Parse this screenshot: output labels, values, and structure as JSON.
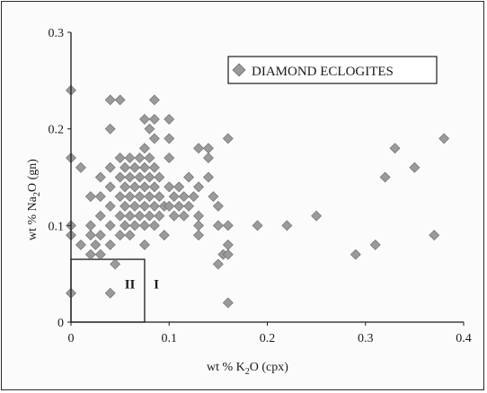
{
  "chart_data": {
    "type": "scatter",
    "xlabel": "wt % K2O (cpx)",
    "ylabel": "wt % Na2O (gn)",
    "xlim": [
      0,
      0.4
    ],
    "ylim": [
      0,
      0.3
    ],
    "x_ticks": [
      "0",
      "0.1",
      "0.2",
      "0.3",
      "0.4"
    ],
    "y_ticks": [
      "0",
      "0.1",
      "0.2",
      "0.3"
    ],
    "grid": false,
    "legend_position": "top-right",
    "series": [
      {
        "name": "DIAMOND ECLOGITES",
        "marker": "diamond",
        "color": "#9a9a9a",
        "points": [
          [
            0,
            0.24
          ],
          [
            0,
            0.17
          ],
          [
            0,
            0.1
          ],
          [
            0,
            0.09
          ],
          [
            0,
            0.03
          ],
          [
            0.01,
            0.16
          ],
          [
            0.01,
            0.08
          ],
          [
            0.02,
            0.13
          ],
          [
            0.02,
            0.1
          ],
          [
            0.02,
            0.09
          ],
          [
            0.02,
            0.07
          ],
          [
            0.025,
            0.08
          ],
          [
            0.03,
            0.15
          ],
          [
            0.03,
            0.13
          ],
          [
            0.03,
            0.11
          ],
          [
            0.03,
            0.09
          ],
          [
            0.03,
            0.07
          ],
          [
            0.04,
            0.23
          ],
          [
            0.04,
            0.2
          ],
          [
            0.04,
            0.16
          ],
          [
            0.04,
            0.14
          ],
          [
            0.04,
            0.12
          ],
          [
            0.04,
            0.1
          ],
          [
            0.04,
            0.08
          ],
          [
            0.04,
            0.03
          ],
          [
            0.045,
            0.06
          ],
          [
            0.05,
            0.23
          ],
          [
            0.05,
            0.17
          ],
          [
            0.05,
            0.15
          ],
          [
            0.05,
            0.13
          ],
          [
            0.05,
            0.11
          ],
          [
            0.05,
            0.09
          ],
          [
            0.055,
            0.16
          ],
          [
            0.055,
            0.14
          ],
          [
            0.055,
            0.12
          ],
          [
            0.055,
            0.1
          ],
          [
            0.06,
            0.17
          ],
          [
            0.06,
            0.15
          ],
          [
            0.06,
            0.13
          ],
          [
            0.06,
            0.11
          ],
          [
            0.06,
            0.09
          ],
          [
            0.065,
            0.16
          ],
          [
            0.065,
            0.14
          ],
          [
            0.065,
            0.12
          ],
          [
            0.065,
            0.1
          ],
          [
            0.07,
            0.17
          ],
          [
            0.07,
            0.15
          ],
          [
            0.07,
            0.13
          ],
          [
            0.07,
            0.11
          ],
          [
            0.075,
            0.21
          ],
          [
            0.075,
            0.18
          ],
          [
            0.075,
            0.16
          ],
          [
            0.075,
            0.14
          ],
          [
            0.075,
            0.12
          ],
          [
            0.075,
            0.1
          ],
          [
            0.075,
            0.08
          ],
          [
            0.08,
            0.2
          ],
          [
            0.08,
            0.17
          ],
          [
            0.08,
            0.15
          ],
          [
            0.08,
            0.13
          ],
          [
            0.08,
            0.11
          ],
          [
            0.085,
            0.23
          ],
          [
            0.085,
            0.21
          ],
          [
            0.085,
            0.19
          ],
          [
            0.085,
            0.16
          ],
          [
            0.085,
            0.14
          ],
          [
            0.085,
            0.12
          ],
          [
            0.085,
            0.1
          ],
          [
            0.09,
            0.15
          ],
          [
            0.09,
            0.13
          ],
          [
            0.09,
            0.11
          ],
          [
            0.095,
            0.12
          ],
          [
            0.095,
            0.09
          ],
          [
            0.1,
            0.21
          ],
          [
            0.1,
            0.19
          ],
          [
            0.1,
            0.17
          ],
          [
            0.1,
            0.14
          ],
          [
            0.1,
            0.12
          ],
          [
            0.105,
            0.13
          ],
          [
            0.105,
            0.11
          ],
          [
            0.11,
            0.14
          ],
          [
            0.11,
            0.12
          ],
          [
            0.115,
            0.13
          ],
          [
            0.115,
            0.11
          ],
          [
            0.12,
            0.15
          ],
          [
            0.12,
            0.12
          ],
          [
            0.125,
            0.13
          ],
          [
            0.13,
            0.18
          ],
          [
            0.13,
            0.14
          ],
          [
            0.13,
            0.11
          ],
          [
            0.13,
            0.1
          ],
          [
            0.13,
            0.09
          ],
          [
            0.14,
            0.18
          ],
          [
            0.14,
            0.17
          ],
          [
            0.14,
            0.15
          ],
          [
            0.145,
            0.13
          ],
          [
            0.15,
            0.12
          ],
          [
            0.15,
            0.1
          ],
          [
            0.15,
            0.06
          ],
          [
            0.155,
            0.07
          ],
          [
            0.16,
            0.19
          ],
          [
            0.16,
            0.1
          ],
          [
            0.16,
            0.08
          ],
          [
            0.16,
            0.07
          ],
          [
            0.16,
            0.02
          ],
          [
            0.19,
            0.1
          ],
          [
            0.22,
            0.1
          ],
          [
            0.25,
            0.11
          ],
          [
            0.29,
            0.07
          ],
          [
            0.31,
            0.08
          ],
          [
            0.32,
            0.15
          ],
          [
            0.33,
            0.18
          ],
          [
            0.35,
            0.16
          ],
          [
            0.37,
            0.09
          ],
          [
            0.38,
            0.19
          ]
        ]
      }
    ],
    "regions": [
      {
        "label": "II",
        "xmax": 0.075,
        "ymax": 0.065
      },
      {
        "label": "I"
      }
    ]
  }
}
